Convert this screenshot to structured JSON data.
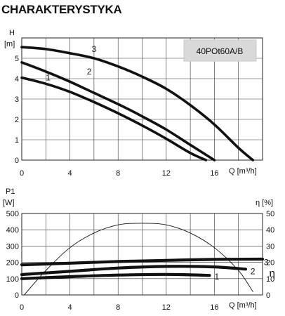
{
  "page_title": "CHARAKTERYSTYKA",
  "chart_data": [
    {
      "type": "line",
      "legend_box": "40POt60A/B",
      "ylabel": "H",
      "yunit": "[m]",
      "xlabel": "Q [m³/h]",
      "xlim": [
        0,
        20
      ],
      "ylim": [
        0,
        6
      ],
      "xticks": [
        "0",
        "4",
        "8",
        "12",
        "16"
      ],
      "yticks": [
        "0",
        "1",
        "2",
        "3",
        "4",
        "5"
      ],
      "grid": true,
      "series": [
        {
          "name": "3",
          "x": [
            0,
            2,
            4,
            6,
            8,
            10,
            12,
            14,
            16,
            18,
            19.2
          ],
          "y": [
            5.55,
            5.45,
            5.25,
            5.0,
            4.6,
            4.1,
            3.5,
            2.7,
            1.75,
            0.6,
            0
          ]
        },
        {
          "name": "2",
          "x": [
            0,
            2,
            4,
            6,
            8,
            10,
            12,
            14,
            16
          ],
          "y": [
            4.8,
            4.35,
            3.85,
            3.3,
            2.75,
            2.15,
            1.5,
            0.75,
            0
          ]
        },
        {
          "name": "1",
          "x": [
            0,
            2,
            4,
            6,
            8,
            10,
            12,
            14,
            15.3
          ],
          "y": [
            4.05,
            3.75,
            3.35,
            2.85,
            2.3,
            1.7,
            1.05,
            0.35,
            0
          ]
        }
      ],
      "curve_labels": [
        {
          "text": "3",
          "x": 6.0,
          "y": 5.45
        },
        {
          "text": "2",
          "x": 5.6,
          "y": 4.35
        },
        {
          "text": "1",
          "x": 2.2,
          "y": 4.05
        }
      ]
    },
    {
      "type": "line",
      "ylabel": "P1",
      "yunit": "[W]",
      "y2label": "η [%]",
      "xlabel": "Q [m³/h]",
      "xlim": [
        0,
        20
      ],
      "ylim": [
        0,
        500
      ],
      "y2lim": [
        0,
        50
      ],
      "xticks": [
        "0",
        "4",
        "8",
        "12",
        "16"
      ],
      "yticks": [
        "0",
        "100",
        "200",
        "300",
        "400",
        "500"
      ],
      "y2ticks": [
        "0",
        "10",
        "20",
        "30",
        "40",
        "50"
      ],
      "grid": true,
      "series": [
        {
          "name": "3",
          "x": [
            0,
            4,
            8,
            12,
            16,
            20
          ],
          "y": [
            185,
            195,
            205,
            212,
            218,
            220
          ]
        },
        {
          "name": "2",
          "x": [
            0,
            4,
            8,
            12,
            16,
            18.6
          ],
          "y": [
            125,
            145,
            165,
            175,
            172,
            158
          ]
        },
        {
          "name": "1",
          "x": [
            0,
            4,
            8,
            12,
            15.6
          ],
          "y": [
            100,
            112,
            122,
            126,
            120
          ]
        },
        {
          "name": "η",
          "axis": "y2",
          "x": [
            0.2,
            2,
            4,
            6,
            8,
            10,
            12,
            14,
            16,
            18,
            19.2
          ],
          "y": [
            0,
            15,
            29,
            38,
            43,
            44,
            43,
            38,
            29,
            15,
            2
          ]
        }
      ],
      "curve_labels": [
        {
          "text": "3",
          "x": 20.3,
          "y": 200
        },
        {
          "text": "2",
          "x": 19.2,
          "y": 145
        },
        {
          "text": "1",
          "x": 16.2,
          "y": 112
        },
        {
          "text": "η",
          "x": 20.8,
          "y": 130
        }
      ]
    }
  ]
}
